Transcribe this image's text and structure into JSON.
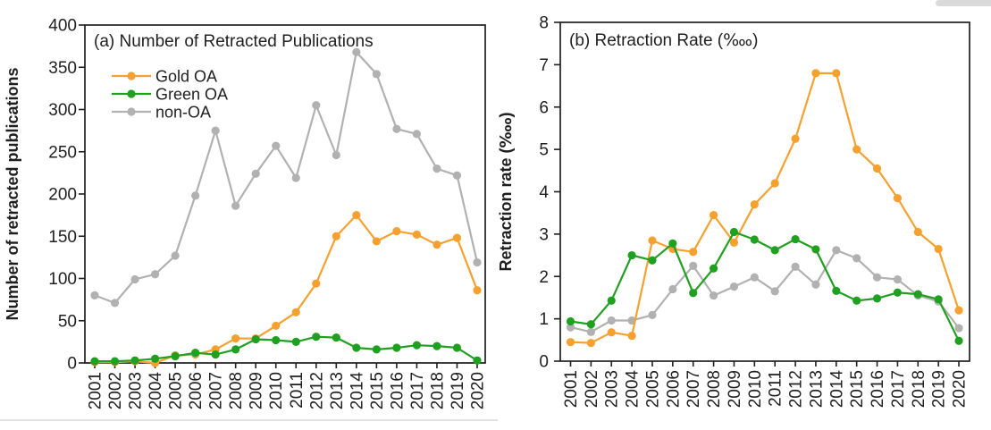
{
  "figure": {
    "background": "#ffffff",
    "frame_color": "#1f1f1f",
    "accent_colors": {
      "gold": "#F6A12F",
      "green": "#20A020",
      "gray": "#B1B1B1"
    }
  },
  "chart_data": [
    {
      "type": "line",
      "panel": "a",
      "title": "(a) Number of Retracted Publications",
      "ylabel": "Number of retracted publications",
      "xlabel": "",
      "ylim": [
        0,
        400
      ],
      "ytick_step": 50,
      "grid": false,
      "legend_position": "top-left-inside",
      "show_legend": true,
      "categories": [
        "2001",
        "2002",
        "2003",
        "2004",
        "2005",
        "2006",
        "2007",
        "2008",
        "2009",
        "2010",
        "2011",
        "2012",
        "2013",
        "2014",
        "2015",
        "2016",
        "2017",
        "2018",
        "2019",
        "2020"
      ],
      "series": [
        {
          "name": "Gold OA",
          "color": "#F6A12F",
          "values": [
            1,
            1,
            2,
            0,
            9,
            10,
            16,
            29,
            29,
            44,
            60,
            94,
            150,
            175,
            144,
            156,
            152,
            140,
            148,
            86
          ]
        },
        {
          "name": "Green OA",
          "color": "#20A020",
          "values": [
            2,
            2,
            3,
            5,
            8,
            12,
            10,
            16,
            28,
            27,
            25,
            31,
            30,
            18,
            16,
            18,
            21,
            20,
            18,
            3
          ]
        },
        {
          "name": "non-OA",
          "color": "#B1B1B1",
          "values": [
            80,
            71,
            99,
            105,
            127,
            198,
            275,
            186,
            224,
            257,
            219,
            305,
            246,
            368,
            342,
            277,
            271,
            230,
            222,
            119
          ]
        }
      ]
    },
    {
      "type": "line",
      "panel": "b",
      "title": "(b) Retraction Rate (‱)",
      "ylabel": "Retraction rate (‱)",
      "xlabel": "",
      "ylim": [
        0,
        8
      ],
      "ytick_step": 1,
      "grid": false,
      "legend_position": "none",
      "show_legend": false,
      "categories": [
        "2001",
        "2002",
        "2003",
        "2004",
        "2005",
        "2006",
        "2007",
        "2008",
        "2009",
        "2010",
        "2011",
        "2012",
        "2013",
        "2014",
        "2015",
        "2016",
        "2017",
        "2018",
        "2019",
        "2020"
      ],
      "series": [
        {
          "name": "Gold OA",
          "color": "#F6A12F",
          "values": [
            0.45,
            0.43,
            0.68,
            0.6,
            2.85,
            2.65,
            2.58,
            3.45,
            2.8,
            3.7,
            4.2,
            5.25,
            6.8,
            6.8,
            5.0,
            4.55,
            3.85,
            3.05,
            2.65,
            1.2
          ]
        },
        {
          "name": "Green OA",
          "color": "#20A020",
          "values": [
            0.94,
            0.87,
            1.43,
            2.5,
            2.38,
            2.78,
            1.61,
            2.19,
            3.05,
            2.87,
            2.62,
            2.88,
            2.64,
            1.66,
            1.43,
            1.48,
            1.62,
            1.58,
            1.46,
            0.48
          ]
        },
        {
          "name": "non-OA",
          "color": "#B1B1B1",
          "values": [
            0.8,
            0.69,
            0.96,
            0.96,
            1.09,
            1.7,
            2.25,
            1.55,
            1.76,
            1.98,
            1.65,
            2.23,
            1.81,
            2.62,
            2.43,
            1.98,
            1.93,
            1.55,
            1.41,
            0.78
          ]
        }
      ]
    }
  ]
}
